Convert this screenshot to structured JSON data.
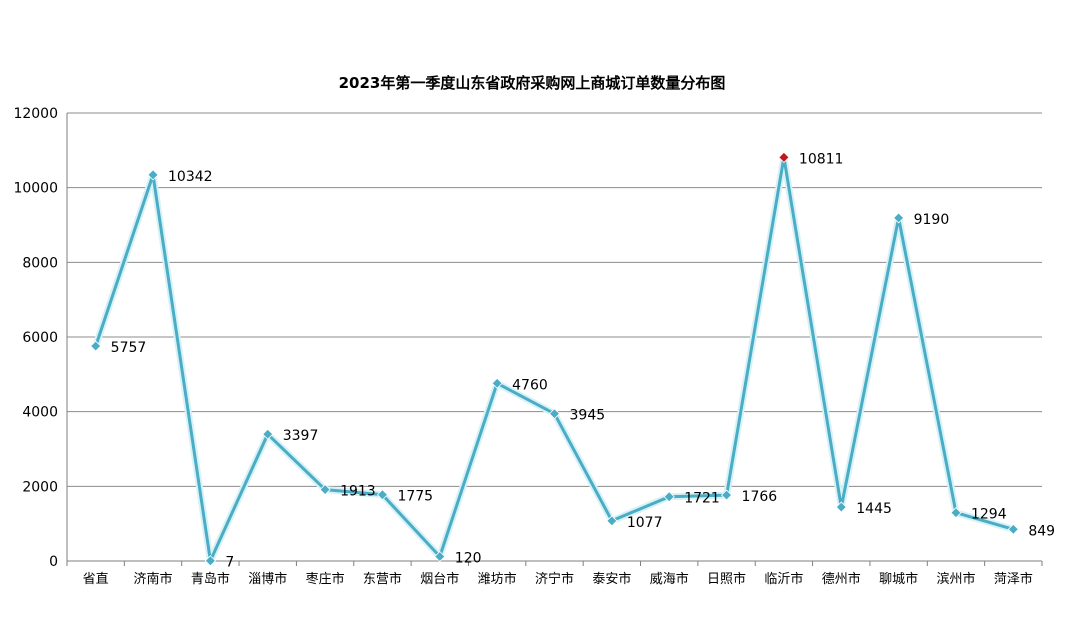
{
  "chart_data": {
    "type": "line",
    "title": "2023年第一季度山东省政府采购网上商城订单数量分布图",
    "xlabel": "",
    "ylabel": "",
    "categories": [
      "省直",
      "济南市",
      "青岛市",
      "淄博市",
      "枣庄市",
      "东营市",
      "烟台市",
      "潍坊市",
      "济宁市",
      "泰安市",
      "威海市",
      "日照市",
      "临沂市",
      "德州市",
      "聊城市",
      "滨州市",
      "菏泽市"
    ],
    "series": [
      {
        "values": [
          5757,
          10342,
          7,
          3397,
          1913,
          1775,
          120,
          4760,
          3945,
          1077,
          1721,
          1766,
          10811,
          1445,
          9190,
          1294,
          849
        ],
        "color": "#4aacc5",
        "max_point_color": "#c0171d"
      }
    ],
    "data_labels": [
      "5757",
      "10342",
      "7",
      "3397",
      "1913",
      "1775",
      "120",
      "4760",
      "3945",
      "1077",
      "1721",
      "1766",
      "10811",
      "1445",
      "9190",
      "1294",
      "849"
    ],
    "ylim": [
      0,
      12000
    ],
    "yticks": [
      "0",
      "2000",
      "4000",
      "6000",
      "8000",
      "10000",
      "12000"
    ],
    "ytick_values": [
      0,
      2000,
      4000,
      6000,
      8000,
      10000,
      12000
    ],
    "grid": true,
    "legend": "none"
  }
}
